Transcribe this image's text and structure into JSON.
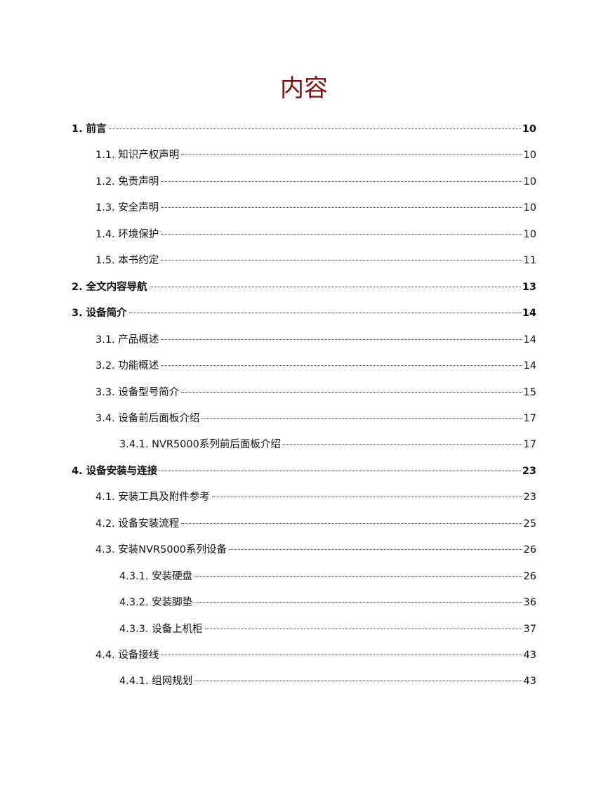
{
  "title": "内容",
  "toc": [
    {
      "label": "1. 前言",
      "page": "10",
      "level": 1
    },
    {
      "label": "1.1. 知识产权声明",
      "page": "10",
      "level": 2
    },
    {
      "label": "1.2. 免责声明",
      "page": "10",
      "level": 2
    },
    {
      "label": "1.3. 安全声明",
      "page": "10",
      "level": 2
    },
    {
      "label": "1.4. 环境保护",
      "page": "10",
      "level": 2
    },
    {
      "label": "1.5. 本书约定",
      "page": "11",
      "level": 2
    },
    {
      "label": "2. 全文内容导航",
      "page": "13",
      "level": 1
    },
    {
      "label": "3. 设备简介",
      "page": "14",
      "level": 1
    },
    {
      "label": "3.1. 产品概述",
      "page": "14",
      "level": 2
    },
    {
      "label": "3.2. 功能概述",
      "page": "14",
      "level": 2
    },
    {
      "label": "3.3. 设备型号简介",
      "page": "15",
      "level": 2
    },
    {
      "label": "3.4. 设备前后面板介绍",
      "page": "17",
      "level": 2
    },
    {
      "label": "3.4.1. NVR5000系列前后面板介绍",
      "page": "17",
      "level": 3
    },
    {
      "label": "4. 设备安装与连接",
      "page": "23",
      "level": 1
    },
    {
      "label": "4.1. 安装工具及附件参考",
      "page": "23",
      "level": 2
    },
    {
      "label": "4.2. 设备安装流程",
      "page": "25",
      "level": 2
    },
    {
      "label": "4.3. 安装NVR5000系列设备",
      "page": "26",
      "level": 2
    },
    {
      "label": "4.3.1. 安装硬盘",
      "page": "26",
      "level": 3
    },
    {
      "label": "4.3.2. 安装脚垫",
      "page": "36",
      "level": 3
    },
    {
      "label": "4.3.3. 设备上机柜",
      "page": "37",
      "level": 3
    },
    {
      "label": "4.4. 设备接线",
      "page": "43",
      "level": 2
    },
    {
      "label": "4.4.1. 组网规划",
      "page": "43",
      "level": 3
    }
  ]
}
